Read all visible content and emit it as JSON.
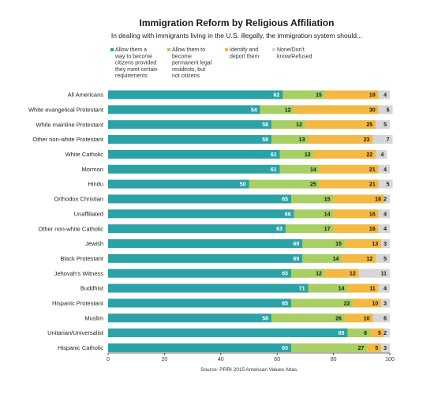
{
  "chart_data": {
    "type": "bar",
    "orientation": "horizontal",
    "stacked": true,
    "title": "Immigration Reform by Religious Affiliation",
    "subtitle": "In dealing with immigrants living in the U.S. illegally, the immigration system should...",
    "source": "Source: PRRI 2015 American Values Atlas.",
    "xlim": [
      0,
      100
    ],
    "xticks": [
      0,
      20,
      40,
      60,
      80,
      100
    ],
    "grid": false,
    "legend_position": "top",
    "categories": [
      "All Americans",
      "White evangelical Protestant",
      "White mainline Protestant",
      "Other non-white Protestant",
      "White Catholic",
      "Mormon",
      "Hindu",
      "Orthodox Christian",
      "Unaffiliated",
      "Other non-white Catholic",
      "Jewish",
      "Black Protestant",
      "Jehovah's Witness",
      "Buddhist",
      "Hispanic Protestant",
      "Muslim",
      "Unitarian/Universalist",
      "Hispanic Catholic"
    ],
    "series": [
      {
        "name": "Allow them a way to become citizens provided they meet certain requirements",
        "legend_lines": [
          "Allow them a",
          "way to become",
          "citizens provided",
          "they meet certain",
          "requirements"
        ],
        "color": "#2aa2a6",
        "label_color": "#ffffff",
        "values": [
          62,
          54,
          58,
          58,
          61,
          61,
          50,
          65,
          66,
          63,
          69,
          69,
          65,
          71,
          65,
          58,
          85,
          65
        ]
      },
      {
        "name": "Allow them to become permanent legal residents, but not citizens",
        "legend_lines": [
          "Allow them to",
          "become",
          "permanent legal",
          "residents, but",
          "not citizens"
        ],
        "color": "#a7cf63",
        "label_color": "#1a1a1a",
        "values": [
          15,
          12,
          12,
          13,
          12,
          14,
          25,
          15,
          14,
          17,
          15,
          14,
          12,
          14,
          22,
          26,
          8,
          27
        ]
      },
      {
        "name": "Identify and deport them",
        "legend_lines": [
          "Identify and",
          "deport them"
        ],
        "color": "#f4b942",
        "label_color": "#1a1a1a",
        "values": [
          19,
          30,
          25,
          23,
          22,
          21,
          21,
          18,
          16,
          16,
          13,
          12,
          12,
          11,
          10,
          10,
          5,
          5
        ]
      },
      {
        "name": "None/Don't know/Refused",
        "legend_lines": [
          "None/Don't",
          "know/Refused"
        ],
        "color": "#d6d6d6",
        "label_color": "#1a1a1a",
        "values": [
          4,
          5,
          5,
          7,
          4,
          4,
          5,
          2,
          4,
          4,
          3,
          5,
          11,
          4,
          3,
          6,
          2,
          3
        ]
      }
    ]
  }
}
